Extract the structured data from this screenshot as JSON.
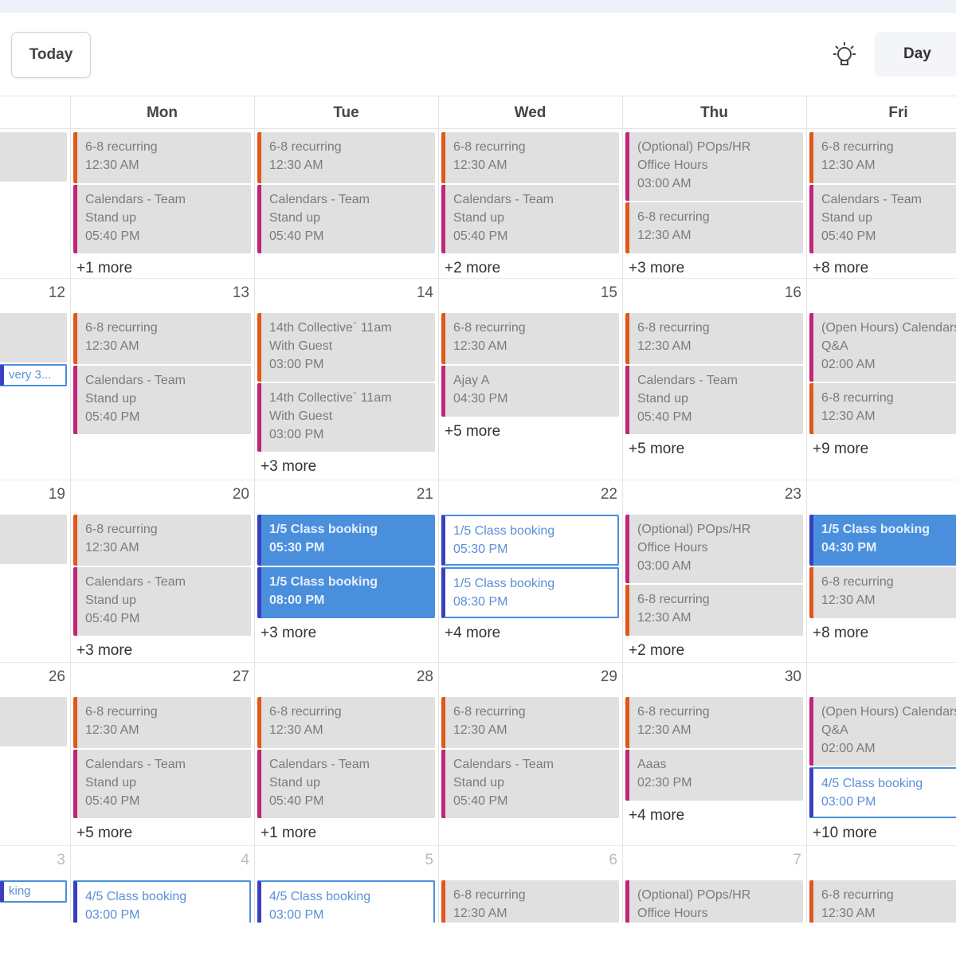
{
  "toolbar": {
    "today_label": "Today",
    "view_label": "Day",
    "theme_icon": "lightbulb-icon"
  },
  "weekdays": [
    "Mon",
    "Tue",
    "Wed",
    "Thu",
    "Fri"
  ],
  "colors": {
    "accent": "#4a8fdc",
    "orange": "#e2561c",
    "magenta": "#c2247a",
    "event_bg": "#e0e0e0"
  },
  "weeks": [
    {
      "cells": [
        {
          "day": "",
          "events": [
            {
              "title": "",
              "time": "",
              "style": "gray-left"
            }
          ],
          "more": ""
        },
        {
          "day": "",
          "events": [
            {
              "title": "6-8 recurring",
              "time": "12:30 AM",
              "style": "orange"
            },
            {
              "title": "Calendars - Team",
              "title2": "Stand up",
              "time": "05:40 PM",
              "style": "magenta"
            }
          ],
          "more": "+1 more"
        },
        {
          "day": "",
          "events": [
            {
              "title": "6-8 recurring",
              "time": "12:30 AM",
              "style": "orange"
            },
            {
              "title": "Calendars - Team",
              "title2": "Stand up",
              "time": "05:40 PM",
              "style": "magenta"
            }
          ],
          "more": ""
        },
        {
          "day": "",
          "events": [
            {
              "title": "6-8 recurring",
              "time": "12:30 AM",
              "style": "orange"
            },
            {
              "title": "Calendars - Team",
              "title2": "Stand up",
              "time": "05:40 PM",
              "style": "magenta"
            }
          ],
          "more": "+2 more"
        },
        {
          "day": "",
          "events": [
            {
              "title": "(Optional) POps/HR",
              "title2": "Office Hours",
              "time": "03:00 AM",
              "style": "magenta"
            },
            {
              "title": "6-8 recurring",
              "time": "12:30 AM",
              "style": "orange"
            }
          ],
          "more": "+3 more"
        },
        {
          "day": "",
          "events": [
            {
              "title": "6-8 recurring",
              "time": "12:30 AM",
              "style": "orange"
            },
            {
              "title": "Calendars - Team",
              "title2": "Stand up",
              "time": "05:40 PM",
              "style": "magenta"
            }
          ],
          "more": "+8 more"
        }
      ]
    },
    {
      "cells": [
        {
          "day": "12",
          "events": [
            {
              "title": "",
              "time": "",
              "style": "gray-left"
            },
            {
              "title": "very 3...",
              "time": "",
              "style": "outline-small"
            }
          ],
          "more": ""
        },
        {
          "day": "13",
          "events": [
            {
              "title": "6-8 recurring",
              "time": "12:30 AM",
              "style": "orange"
            },
            {
              "title": "Calendars - Team",
              "title2": "Stand up",
              "time": "05:40 PM",
              "style": "magenta"
            }
          ],
          "more": ""
        },
        {
          "day": "14",
          "events": [
            {
              "title": "14th Collective` 11am",
              "title2": "With Guest",
              "time": "03:00 PM",
              "style": "orange"
            },
            {
              "title": "14th Collective` 11am",
              "title2": "With Guest",
              "time": "03:00 PM",
              "style": "magenta"
            }
          ],
          "more": "+3 more"
        },
        {
          "day": "15",
          "events": [
            {
              "title": "6-8 recurring",
              "time": "12:30 AM",
              "style": "orange"
            },
            {
              "title": "Ajay A",
              "time": "04:30 PM",
              "style": "magenta"
            }
          ],
          "more": "+5 more"
        },
        {
          "day": "16",
          "events": [
            {
              "title": "6-8 recurring",
              "time": "12:30 AM",
              "style": "orange"
            },
            {
              "title": "Calendars - Team",
              "title2": "Stand up",
              "time": "05:40 PM",
              "style": "magenta"
            }
          ],
          "more": "+5 more"
        },
        {
          "day": "",
          "events": [
            {
              "title": "(Open Hours) Calendars",
              "title2": "Q&A",
              "time": "02:00 AM",
              "style": "magenta"
            },
            {
              "title": "6-8 recurring",
              "time": "12:30 AM",
              "style": "orange"
            }
          ],
          "more": "+9 more"
        }
      ]
    },
    {
      "cells": [
        {
          "day": "19",
          "events": [
            {
              "title": "",
              "time": "",
              "style": "gray-left"
            }
          ],
          "more": ""
        },
        {
          "day": "20",
          "events": [
            {
              "title": "6-8 recurring",
              "time": "12:30 AM",
              "style": "orange"
            },
            {
              "title": "Calendars - Team",
              "title2": "Stand up",
              "time": "05:40 PM",
              "style": "magenta"
            }
          ],
          "more": "+3 more"
        },
        {
          "day": "21",
          "events": [
            {
              "title": "1/5  Class booking",
              "time": "05:30 PM",
              "style": "blue"
            },
            {
              "title": "1/5  Class booking",
              "time": "08:00 PM",
              "style": "blue"
            }
          ],
          "more": "+3 more"
        },
        {
          "day": "22",
          "events": [
            {
              "title": "1/5  Class booking",
              "time": "05:30 PM",
              "style": "outline"
            },
            {
              "title": "1/5  Class booking",
              "time": "08:30 PM",
              "style": "outline"
            }
          ],
          "more": "+4 more"
        },
        {
          "day": "23",
          "events": [
            {
              "title": "(Optional) POps/HR",
              "title2": "Office Hours",
              "time": "03:00 AM",
              "style": "magenta"
            },
            {
              "title": "6-8 recurring",
              "time": "12:30 AM",
              "style": "orange"
            }
          ],
          "more": "+2 more"
        },
        {
          "day": "",
          "events": [
            {
              "title": "1/5  Class booking",
              "time": "04:30 PM",
              "style": "blue"
            },
            {
              "title": "6-8 recurring",
              "time": "12:30 AM",
              "style": "orange"
            }
          ],
          "more": "+8 more"
        }
      ]
    },
    {
      "cells": [
        {
          "day": "26",
          "events": [
            {
              "title": "",
              "time": "",
              "style": "gray-left"
            }
          ],
          "more": ""
        },
        {
          "day": "27",
          "events": [
            {
              "title": "6-8 recurring",
              "time": "12:30 AM",
              "style": "orange"
            },
            {
              "title": "Calendars - Team",
              "title2": "Stand up",
              "time": "05:40 PM",
              "style": "magenta"
            }
          ],
          "more": "+5 more"
        },
        {
          "day": "28",
          "events": [
            {
              "title": "6-8 recurring",
              "time": "12:30 AM",
              "style": "orange"
            },
            {
              "title": "Calendars - Team",
              "title2": "Stand up",
              "time": "05:40 PM",
              "style": "magenta"
            }
          ],
          "more": "+1 more"
        },
        {
          "day": "29",
          "events": [
            {
              "title": "6-8 recurring",
              "time": "12:30 AM",
              "style": "orange"
            },
            {
              "title": "Calendars - Team",
              "title2": "Stand up",
              "time": "05:40 PM",
              "style": "magenta"
            }
          ],
          "more": ""
        },
        {
          "day": "30",
          "events": [
            {
              "title": "6-8 recurring",
              "time": "12:30 AM",
              "style": "orange"
            },
            {
              "title": "Aaas",
              "time": "02:30 PM",
              "style": "magenta"
            }
          ],
          "more": "+4 more"
        },
        {
          "day": "",
          "events": [
            {
              "title": "(Open Hours) Calendars",
              "title2": "Q&A",
              "time": "02:00 AM",
              "style": "magenta"
            },
            {
              "title": "4/5  Class booking",
              "time": "03:00 PM",
              "style": "outline"
            }
          ],
          "more": "+10 more"
        }
      ]
    },
    {
      "cells": [
        {
          "day": "3",
          "events": [
            {
              "title": "king",
              "time": "",
              "style": "outline-small"
            }
          ],
          "more": ""
        },
        {
          "day": "4",
          "events": [
            {
              "title": "4/5  Class booking",
              "time": "03:00 PM",
              "style": "outline"
            }
          ],
          "more": ""
        },
        {
          "day": "5",
          "events": [
            {
              "title": "4/5  Class booking",
              "time": "03:00 PM",
              "style": "outline"
            }
          ],
          "more": ""
        },
        {
          "day": "6",
          "events": [
            {
              "title": "6-8 recurring",
              "time": "12:30 AM",
              "style": "orange"
            }
          ],
          "more": ""
        },
        {
          "day": "7",
          "events": [
            {
              "title": "(Optional) POps/HR",
              "title2": "Office Hours",
              "time": "",
              "style": "magenta"
            }
          ],
          "more": ""
        },
        {
          "day": "",
          "events": [
            {
              "title": "6-8 recurring",
              "time": "12:30 AM",
              "style": "orange"
            }
          ],
          "more": ""
        }
      ]
    }
  ]
}
